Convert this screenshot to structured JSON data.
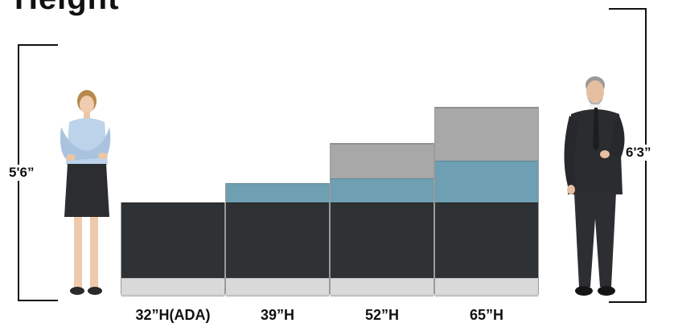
{
  "title": "Height",
  "figures": {
    "woman": {
      "height_label": "5'6”"
    },
    "man": {
      "height_label": "6'3”"
    }
  },
  "panels": [
    {
      "label": "32”H(ADA)"
    },
    {
      "label": "39”H"
    },
    {
      "label": "52”H"
    },
    {
      "label": "65”H"
    }
  ],
  "colors": {
    "dark_base": "#2f3235",
    "blue_glass": "#6e9fb2",
    "gray_cap": "#a8a8a8",
    "foot": "#d9d9d9"
  }
}
